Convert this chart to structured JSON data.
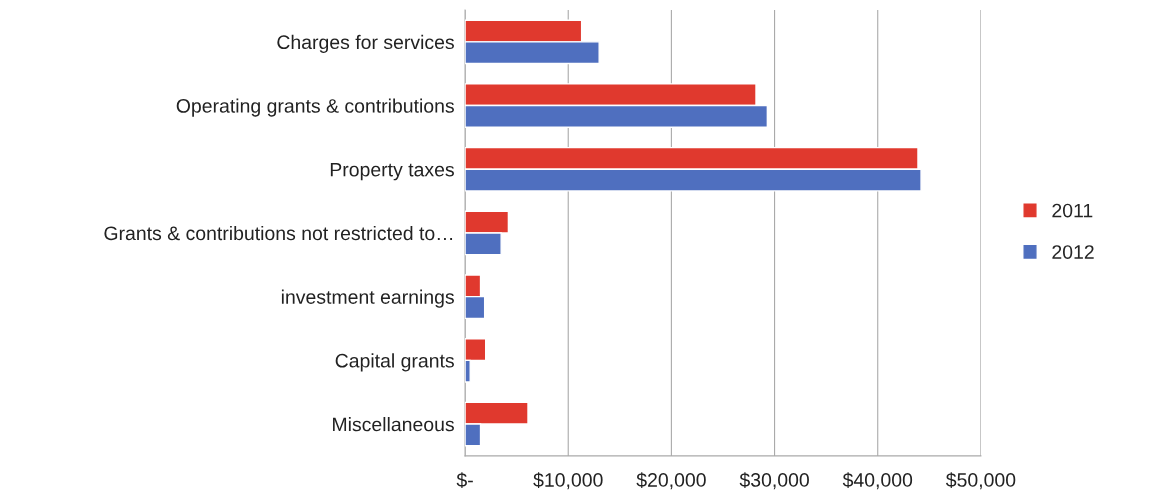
{
  "chart_data": {
    "type": "bar",
    "orientation": "horizontal",
    "categories": [
      "Charges for services",
      "Operating grants & contributions",
      "Property taxes",
      "Grants & contributions not restricted to…",
      "investment earnings",
      "Capital grants",
      "Miscellaneous"
    ],
    "series": [
      {
        "name": "2011",
        "color": "#e0392e",
        "values": [
          11300,
          28200,
          43900,
          4200,
          1500,
          2000,
          6100
        ]
      },
      {
        "name": "2012",
        "color": "#4f6fbf",
        "values": [
          13000,
          29300,
          44200,
          3500,
          1900,
          500,
          1500
        ]
      }
    ],
    "xlim": [
      0,
      50000
    ],
    "xticks": [
      {
        "value": 0,
        "label": "$-"
      },
      {
        "value": 10000,
        "label": "$10,000"
      },
      {
        "value": 20000,
        "label": "$20,000"
      },
      {
        "value": 30000,
        "label": "$30,000"
      },
      {
        "value": 40000,
        "label": "$40,000"
      },
      {
        "value": 50000,
        "label": "$50,000"
      }
    ],
    "grid": "x",
    "legend": "right"
  }
}
